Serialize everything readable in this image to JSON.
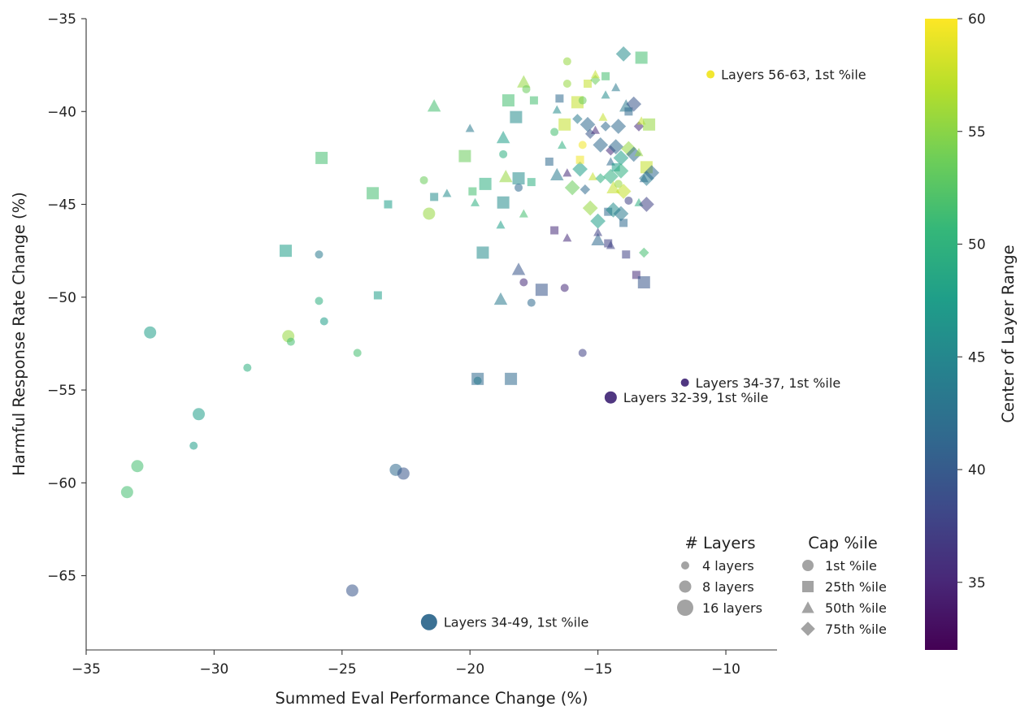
{
  "chart_data": {
    "type": "scatter",
    "xlabel": "Summed Eval Performance Change (%)",
    "ylabel": "Harmful Response Rate Change (%)",
    "xlim": [
      -35,
      -8
    ],
    "ylim": [
      -69,
      -35
    ],
    "xticks": [
      -35,
      -30,
      -25,
      -20,
      -15,
      -10
    ],
    "yticks": [
      -35,
      -40,
      -45,
      -50,
      -55,
      -60,
      -65
    ],
    "colorbar": {
      "label": "Center of Layer Range",
      "range": [
        32,
        60
      ],
      "ticks": [
        35,
        40,
        45,
        50,
        55,
        60
      ],
      "colormap": "viridis",
      "colors": [
        "#440154",
        "#482878",
        "#3e4989",
        "#31688e",
        "#26828e",
        "#1f9e89",
        "#35b779",
        "#6ece58",
        "#b5de2b",
        "#fde725"
      ]
    },
    "legend_layers": {
      "title": "# Layers",
      "items": [
        {
          "label": "4 layers",
          "n": 4
        },
        {
          "label": "8 layers",
          "n": 8
        },
        {
          "label": "16 layers",
          "n": 16
        }
      ]
    },
    "legend_cap": {
      "title": "Cap %ile",
      "items": [
        {
          "label": "1st %ile",
          "shape": "circle"
        },
        {
          "label": "25th %ile",
          "shape": "square"
        },
        {
          "label": "50th %ile",
          "shape": "triangle"
        },
        {
          "label": "75th %ile",
          "shape": "diamond"
        }
      ]
    },
    "legend_color": "#999999",
    "annotations": [
      {
        "text": "Layers 56-63, 1st %ile",
        "x": -10.6,
        "y": -38.0,
        "n": 4,
        "c": 59.5,
        "shape": "circle"
      },
      {
        "text": "Layers 34-37, 1st %ile",
        "x": -11.6,
        "y": -54.6,
        "n": 4,
        "c": 35.5,
        "shape": "circle"
      },
      {
        "text": "Layers 32-39, 1st %ile",
        "x": -14.5,
        "y": -55.4,
        "n": 8,
        "c": 35.5,
        "shape": "circle"
      },
      {
        "text": "Layers 34-49, 1st %ile",
        "x": -21.6,
        "y": -67.5,
        "n": 16,
        "c": 41.5,
        "shape": "circle"
      }
    ],
    "points": [
      {
        "x": -33.4,
        "y": -60.5,
        "n": 8,
        "c": 51.5,
        "shape": "circle"
      },
      {
        "x": -33.0,
        "y": -59.1,
        "n": 8,
        "c": 51.5,
        "shape": "circle"
      },
      {
        "x": -32.5,
        "y": -51.9,
        "n": 8,
        "c": 47.5,
        "shape": "circle"
      },
      {
        "x": -30.8,
        "y": -58.0,
        "n": 4,
        "c": 47.5,
        "shape": "circle"
      },
      {
        "x": -30.6,
        "y": -56.3,
        "n": 8,
        "c": 47.5,
        "shape": "circle"
      },
      {
        "x": -28.7,
        "y": -53.8,
        "n": 4,
        "c": 49.5,
        "shape": "circle"
      },
      {
        "x": -27.2,
        "y": -47.5,
        "n": 8,
        "c": 47.5,
        "shape": "square"
      },
      {
        "x": -27.1,
        "y": -52.1,
        "n": 8,
        "c": 55.5,
        "shape": "circle"
      },
      {
        "x": -27.0,
        "y": -52.4,
        "n": 4,
        "c": 51.5,
        "shape": "circle"
      },
      {
        "x": -25.9,
        "y": -47.7,
        "n": 4,
        "c": 43.5,
        "shape": "circle"
      },
      {
        "x": -25.9,
        "y": -50.2,
        "n": 4,
        "c": 49.5,
        "shape": "circle"
      },
      {
        "x": -25.8,
        "y": -42.5,
        "n": 8,
        "c": 51.5,
        "shape": "square"
      },
      {
        "x": -25.7,
        "y": -51.3,
        "n": 4,
        "c": 47.5,
        "shape": "circle"
      },
      {
        "x": -24.6,
        "y": -65.8,
        "n": 8,
        "c": 39.5,
        "shape": "circle"
      },
      {
        "x": -24.4,
        "y": -53.0,
        "n": 4,
        "c": 51.5,
        "shape": "circle"
      },
      {
        "x": -23.8,
        "y": -44.4,
        "n": 8,
        "c": 51.5,
        "shape": "square"
      },
      {
        "x": -23.6,
        "y": -49.9,
        "n": 4,
        "c": 47.5,
        "shape": "square"
      },
      {
        "x": -23.2,
        "y": -45.0,
        "n": 4,
        "c": 47.5,
        "shape": "square"
      },
      {
        "x": -22.9,
        "y": -59.3,
        "n": 8,
        "c": 41.5,
        "shape": "circle"
      },
      {
        "x": -22.6,
        "y": -59.5,
        "n": 8,
        "c": 39.5,
        "shape": "circle"
      },
      {
        "x": -21.8,
        "y": -43.7,
        "n": 4,
        "c": 53.5,
        "shape": "circle"
      },
      {
        "x": -21.6,
        "y": -45.5,
        "n": 8,
        "c": 55.5,
        "shape": "circle"
      },
      {
        "x": -21.4,
        "y": -39.7,
        "n": 8,
        "c": 51.5,
        "shape": "triangle"
      },
      {
        "x": -21.4,
        "y": -44.6,
        "n": 4,
        "c": 45.5,
        "shape": "square"
      },
      {
        "x": -20.9,
        "y": -44.4,
        "n": 4,
        "c": 45.5,
        "shape": "triangle"
      },
      {
        "x": -20.2,
        "y": -42.4,
        "n": 8,
        "c": 53.5,
        "shape": "square"
      },
      {
        "x": -20.0,
        "y": -40.9,
        "n": 4,
        "c": 43.5,
        "shape": "triangle"
      },
      {
        "x": -19.9,
        "y": -44.3,
        "n": 4,
        "c": 51.5,
        "shape": "square"
      },
      {
        "x": -19.8,
        "y": -44.9,
        "n": 4,
        "c": 49.5,
        "shape": "triangle"
      },
      {
        "x": -19.7,
        "y": -54.4,
        "n": 8,
        "c": 41.5,
        "shape": "square"
      },
      {
        "x": -19.7,
        "y": -54.5,
        "n": 4,
        "c": 43.5,
        "shape": "circle"
      },
      {
        "x": -19.5,
        "y": -47.6,
        "n": 8,
        "c": 45.5,
        "shape": "square"
      },
      {
        "x": -19.4,
        "y": -43.9,
        "n": 8,
        "c": 49.5,
        "shape": "square"
      },
      {
        "x": -18.8,
        "y": -50.1,
        "n": 8,
        "c": 43.5,
        "shape": "triangle"
      },
      {
        "x": -18.8,
        "y": -46.1,
        "n": 4,
        "c": 47.5,
        "shape": "triangle"
      },
      {
        "x": -18.7,
        "y": -44.9,
        "n": 8,
        "c": 45.5,
        "shape": "square"
      },
      {
        "x": -18.7,
        "y": -42.3,
        "n": 4,
        "c": 49.5,
        "shape": "circle"
      },
      {
        "x": -18.7,
        "y": -41.4,
        "n": 8,
        "c": 47.5,
        "shape": "triangle"
      },
      {
        "x": -18.6,
        "y": -43.5,
        "n": 8,
        "c": 55.5,
        "shape": "triangle"
      },
      {
        "x": -18.5,
        "y": -39.4,
        "n": 8,
        "c": 51.5,
        "shape": "square"
      },
      {
        "x": -18.4,
        "y": -54.4,
        "n": 8,
        "c": 41.5,
        "shape": "square"
      },
      {
        "x": -18.2,
        "y": -40.3,
        "n": 8,
        "c": 45.5,
        "shape": "square"
      },
      {
        "x": -18.1,
        "y": -43.6,
        "n": 8,
        "c": 45.5,
        "shape": "square"
      },
      {
        "x": -18.1,
        "y": -44.1,
        "n": 4,
        "c": 41.5,
        "shape": "circle"
      },
      {
        "x": -18.1,
        "y": -48.5,
        "n": 8,
        "c": 39.5,
        "shape": "triangle"
      },
      {
        "x": -17.9,
        "y": -49.2,
        "n": 4,
        "c": 35.5,
        "shape": "circle"
      },
      {
        "x": -17.9,
        "y": -38.4,
        "n": 8,
        "c": 55.5,
        "shape": "triangle"
      },
      {
        "x": -17.8,
        "y": -38.8,
        "n": 4,
        "c": 53.5,
        "shape": "circle"
      },
      {
        "x": -17.9,
        "y": -45.5,
        "n": 4,
        "c": 51.5,
        "shape": "triangle"
      },
      {
        "x": -17.6,
        "y": -50.3,
        "n": 4,
        "c": 41.5,
        "shape": "circle"
      },
      {
        "x": -17.6,
        "y": -43.8,
        "n": 4,
        "c": 49.5,
        "shape": "square"
      },
      {
        "x": -17.5,
        "y": -39.4,
        "n": 4,
        "c": 51.5,
        "shape": "square"
      },
      {
        "x": -17.2,
        "y": -49.6,
        "n": 8,
        "c": 39.5,
        "shape": "square"
      },
      {
        "x": -16.9,
        "y": -42.7,
        "n": 4,
        "c": 41.5,
        "shape": "square"
      },
      {
        "x": -16.7,
        "y": -46.4,
        "n": 4,
        "c": 35.5,
        "shape": "square"
      },
      {
        "x": -16.7,
        "y": -41.1,
        "n": 4,
        "c": 51.5,
        "shape": "circle"
      },
      {
        "x": -16.6,
        "y": -43.4,
        "n": 8,
        "c": 43.5,
        "shape": "triangle"
      },
      {
        "x": -16.6,
        "y": -39.9,
        "n": 4,
        "c": 45.5,
        "shape": "triangle"
      },
      {
        "x": -16.5,
        "y": -39.3,
        "n": 4,
        "c": 41.5,
        "shape": "square"
      },
      {
        "x": -16.4,
        "y": -41.8,
        "n": 4,
        "c": 49.5,
        "shape": "triangle"
      },
      {
        "x": -16.3,
        "y": -49.5,
        "n": 4,
        "c": 35.5,
        "shape": "circle"
      },
      {
        "x": -16.3,
        "y": -40.7,
        "n": 8,
        "c": 57.5,
        "shape": "square"
      },
      {
        "x": -16.2,
        "y": -37.3,
        "n": 4,
        "c": 55.5,
        "shape": "circle"
      },
      {
        "x": -16.2,
        "y": -38.5,
        "n": 4,
        "c": 55.5,
        "shape": "circle"
      },
      {
        "x": -16.2,
        "y": -43.3,
        "n": 4,
        "c": 35.5,
        "shape": "triangle"
      },
      {
        "x": -16.2,
        "y": -46.8,
        "n": 4,
        "c": 35.5,
        "shape": "triangle"
      },
      {
        "x": -16.0,
        "y": -44.1,
        "n": 8,
        "c": 53.5,
        "shape": "diamond"
      },
      {
        "x": -15.8,
        "y": -39.5,
        "n": 8,
        "c": 57.5,
        "shape": "square"
      },
      {
        "x": -15.8,
        "y": -40.4,
        "n": 4,
        "c": 43.5,
        "shape": "diamond"
      },
      {
        "x": -15.7,
        "y": -43.1,
        "n": 8,
        "c": 47.5,
        "shape": "diamond"
      },
      {
        "x": -15.7,
        "y": -42.6,
        "n": 4,
        "c": 59.5,
        "shape": "square"
      },
      {
        "x": -15.6,
        "y": -41.8,
        "n": 4,
        "c": 59.5,
        "shape": "circle"
      },
      {
        "x": -15.6,
        "y": -39.4,
        "n": 4,
        "c": 53.5,
        "shape": "circle"
      },
      {
        "x": -15.6,
        "y": -53.0,
        "n": 4,
        "c": 37.5,
        "shape": "circle"
      },
      {
        "x": -15.5,
        "y": -44.2,
        "n": 4,
        "c": 41.5,
        "shape": "diamond"
      },
      {
        "x": -15.4,
        "y": -40.7,
        "n": 8,
        "c": 41.5,
        "shape": "diamond"
      },
      {
        "x": -15.4,
        "y": -38.5,
        "n": 4,
        "c": 57.5,
        "shape": "square"
      },
      {
        "x": -15.3,
        "y": -41.2,
        "n": 4,
        "c": 39.5,
        "shape": "diamond"
      },
      {
        "x": -15.3,
        "y": -45.2,
        "n": 8,
        "c": 55.5,
        "shape": "diamond"
      },
      {
        "x": -15.2,
        "y": -43.5,
        "n": 4,
        "c": 57.5,
        "shape": "triangle"
      },
      {
        "x": -15.1,
        "y": -38.3,
        "n": 4,
        "c": 53.5,
        "shape": "diamond"
      },
      {
        "x": -15.1,
        "y": -38.0,
        "n": 4,
        "c": 57.5,
        "shape": "triangle"
      },
      {
        "x": -15.1,
        "y": -41.0,
        "n": 4,
        "c": 35.5,
        "shape": "triangle"
      },
      {
        "x": -15.0,
        "y": -46.9,
        "n": 8,
        "c": 41.5,
        "shape": "triangle"
      },
      {
        "x": -15.0,
        "y": -46.5,
        "n": 4,
        "c": 37.5,
        "shape": "triangle"
      },
      {
        "x": -15.0,
        "y": -45.9,
        "n": 8,
        "c": 47.5,
        "shape": "diamond"
      },
      {
        "x": -14.9,
        "y": -43.6,
        "n": 4,
        "c": 49.5,
        "shape": "diamond"
      },
      {
        "x": -14.9,
        "y": -41.8,
        "n": 8,
        "c": 41.5,
        "shape": "diamond"
      },
      {
        "x": -14.8,
        "y": -40.3,
        "n": 4,
        "c": 57.5,
        "shape": "triangle"
      },
      {
        "x": -14.7,
        "y": -38.1,
        "n": 4,
        "c": 51.5,
        "shape": "square"
      },
      {
        "x": -14.7,
        "y": -40.8,
        "n": 4,
        "c": 41.5,
        "shape": "diamond"
      },
      {
        "x": -14.7,
        "y": -39.1,
        "n": 4,
        "c": 45.5,
        "shape": "triangle"
      },
      {
        "x": -14.6,
        "y": -45.4,
        "n": 4,
        "c": 41.5,
        "shape": "square"
      },
      {
        "x": -14.6,
        "y": -47.1,
        "n": 4,
        "c": 37.5,
        "shape": "square"
      },
      {
        "x": -14.5,
        "y": -47.2,
        "n": 4,
        "c": 37.5,
        "shape": "triangle"
      },
      {
        "x": -14.5,
        "y": -43.5,
        "n": 8,
        "c": 49.5,
        "shape": "diamond"
      },
      {
        "x": -14.5,
        "y": -42.1,
        "n": 4,
        "c": 35.5,
        "shape": "diamond"
      },
      {
        "x": -14.5,
        "y": -42.7,
        "n": 4,
        "c": 41.5,
        "shape": "triangle"
      },
      {
        "x": -14.4,
        "y": -44.1,
        "n": 8,
        "c": 57.5,
        "shape": "triangle"
      },
      {
        "x": -14.4,
        "y": -45.3,
        "n": 8,
        "c": 45.5,
        "shape": "diamond"
      },
      {
        "x": -14.3,
        "y": -41.9,
        "n": 8,
        "c": 41.5,
        "shape": "diamond"
      },
      {
        "x": -14.3,
        "y": -43.0,
        "n": 4,
        "c": 47.5,
        "shape": "square"
      },
      {
        "x": -14.3,
        "y": -38.7,
        "n": 4,
        "c": 43.5,
        "shape": "triangle"
      },
      {
        "x": -14.2,
        "y": -40.8,
        "n": 8,
        "c": 41.5,
        "shape": "diamond"
      },
      {
        "x": -14.2,
        "y": -43.9,
        "n": 4,
        "c": 55.5,
        "shape": "circle"
      },
      {
        "x": -14.1,
        "y": -45.5,
        "n": 8,
        "c": 43.5,
        "shape": "diamond"
      },
      {
        "x": -14.1,
        "y": -42.5,
        "n": 8,
        "c": 47.5,
        "shape": "diamond"
      },
      {
        "x": -14.1,
        "y": -43.2,
        "n": 8,
        "c": 49.5,
        "shape": "diamond"
      },
      {
        "x": -14.0,
        "y": -44.3,
        "n": 8,
        "c": 57.5,
        "shape": "diamond"
      },
      {
        "x": -14.0,
        "y": -46.0,
        "n": 4,
        "c": 41.5,
        "shape": "square"
      },
      {
        "x": -14.0,
        "y": -36.9,
        "n": 8,
        "c": 45.5,
        "shape": "diamond"
      },
      {
        "x": -13.9,
        "y": -47.7,
        "n": 4,
        "c": 37.5,
        "shape": "square"
      },
      {
        "x": -13.9,
        "y": -39.7,
        "n": 8,
        "c": 43.5,
        "shape": "triangle"
      },
      {
        "x": -13.8,
        "y": -44.8,
        "n": 4,
        "c": 37.5,
        "shape": "circle"
      },
      {
        "x": -13.8,
        "y": -40.0,
        "n": 4,
        "c": 41.5,
        "shape": "square"
      },
      {
        "x": -13.8,
        "y": -42.0,
        "n": 8,
        "c": 55.5,
        "shape": "diamond"
      },
      {
        "x": -13.6,
        "y": -39.6,
        "n": 8,
        "c": 39.5,
        "shape": "diamond"
      },
      {
        "x": -13.6,
        "y": -42.3,
        "n": 8,
        "c": 41.5,
        "shape": "diamond"
      },
      {
        "x": -13.5,
        "y": -48.8,
        "n": 4,
        "c": 35.5,
        "shape": "square"
      },
      {
        "x": -13.4,
        "y": -42.2,
        "n": 4,
        "c": 55.5,
        "shape": "triangle"
      },
      {
        "x": -13.4,
        "y": -44.9,
        "n": 4,
        "c": 49.5,
        "shape": "triangle"
      },
      {
        "x": -13.4,
        "y": -40.8,
        "n": 4,
        "c": 35.5,
        "shape": "diamond"
      },
      {
        "x": -13.3,
        "y": -37.1,
        "n": 8,
        "c": 51.5,
        "shape": "square"
      },
      {
        "x": -13.3,
        "y": -40.5,
        "n": 4,
        "c": 57.5,
        "shape": "triangle"
      },
      {
        "x": -13.2,
        "y": -49.2,
        "n": 8,
        "c": 39.5,
        "shape": "square"
      },
      {
        "x": -13.2,
        "y": -47.6,
        "n": 4,
        "c": 51.5,
        "shape": "diamond"
      },
      {
        "x": -13.2,
        "y": -43.6,
        "n": 4,
        "c": 41.5,
        "shape": "triangle"
      },
      {
        "x": -13.1,
        "y": -45.0,
        "n": 8,
        "c": 37.5,
        "shape": "diamond"
      },
      {
        "x": -13.1,
        "y": -43.0,
        "n": 8,
        "c": 57.5,
        "shape": "square"
      },
      {
        "x": -13.1,
        "y": -43.6,
        "n": 8,
        "c": 43.5,
        "shape": "diamond"
      },
      {
        "x": -13.0,
        "y": -40.7,
        "n": 8,
        "c": 55.5,
        "shape": "square"
      },
      {
        "x": -12.9,
        "y": -43.3,
        "n": 8,
        "c": 41.5,
        "shape": "diamond"
      }
    ]
  }
}
